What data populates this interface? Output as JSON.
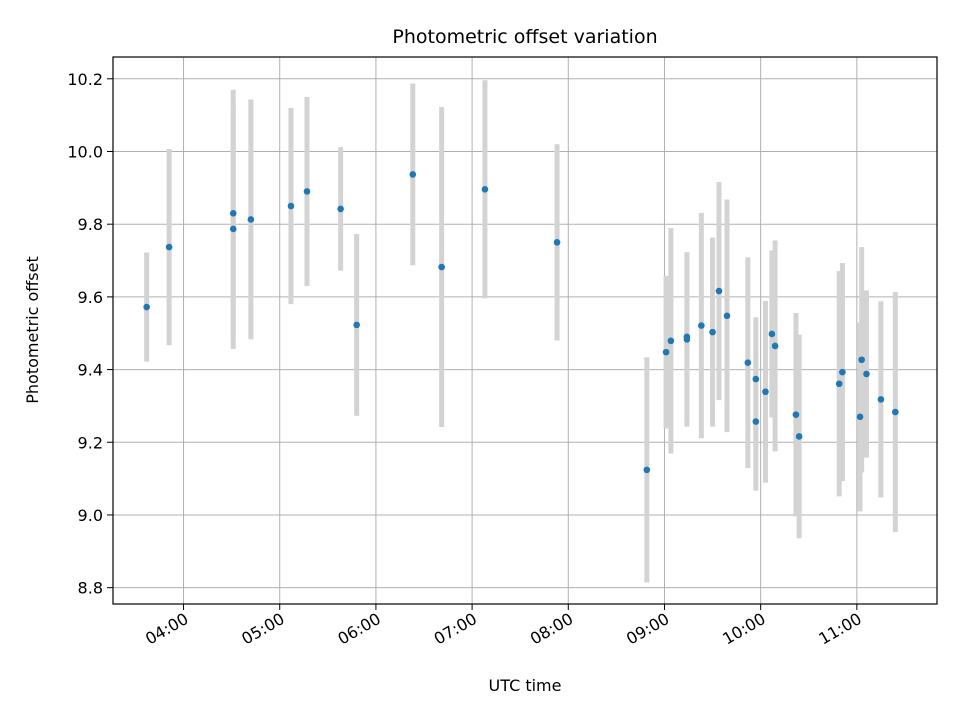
{
  "chart_data": {
    "type": "scatter",
    "title": "Photometric offset variation",
    "xlabel": "UTC time",
    "ylabel": "Photometric offset",
    "x_tick_labels": [
      "04:00",
      "05:00",
      "06:00",
      "07:00",
      "08:00",
      "09:00",
      "10:00",
      "11:00"
    ],
    "y_ticks": [
      8.8,
      9.0,
      9.2,
      9.4,
      9.6,
      9.8,
      10.0,
      10.2
    ],
    "y_tick_labels": [
      "8.8",
      "9.0",
      "9.2",
      "9.4",
      "9.6",
      "9.8",
      "10.0",
      "10.2"
    ],
    "xlim": [
      "03:16",
      "11:50"
    ],
    "ylim": [
      8.755,
      10.26
    ],
    "grid": true,
    "point_color": "#1f77b4",
    "errorbar_color": "#d3d3d3",
    "points": [
      {
        "t": "03:37",
        "y": 9.572,
        "err": 0.15
      },
      {
        "t": "03:51",
        "y": 9.737,
        "err": 0.27
      },
      {
        "t": "04:31",
        "y": 9.83,
        "err": 0.34
      },
      {
        "t": "04:31",
        "y": 9.787,
        "err": 0.33
      },
      {
        "t": "04:42",
        "y": 9.813,
        "err": 0.33
      },
      {
        "t": "05:07",
        "y": 9.85,
        "err": 0.27
      },
      {
        "t": "05:17",
        "y": 9.89,
        "err": 0.26
      },
      {
        "t": "05:38",
        "y": 9.842,
        "err": 0.17
      },
      {
        "t": "05:48",
        "y": 9.523,
        "err": 0.25
      },
      {
        "t": "06:23",
        "y": 9.937,
        "err": 0.25
      },
      {
        "t": "06:41",
        "y": 9.682,
        "err": 0.44
      },
      {
        "t": "07:08",
        "y": 9.896,
        "err": 0.3
      },
      {
        "t": "07:53",
        "y": 9.75,
        "err": 0.27
      },
      {
        "t": "08:49",
        "y": 9.124,
        "err": 0.31
      },
      {
        "t": "09:01",
        "y": 9.448,
        "err": 0.21
      },
      {
        "t": "09:04",
        "y": 9.479,
        "err": 0.31
      },
      {
        "t": "09:14",
        "y": 9.483,
        "err": 0.24
      },
      {
        "t": "09:14",
        "y": 9.49,
        "err": 0.23
      },
      {
        "t": "09:23",
        "y": 9.521,
        "err": 0.31
      },
      {
        "t": "09:30",
        "y": 9.503,
        "err": 0.26
      },
      {
        "t": "09:34",
        "y": 9.616,
        "err": 0.3
      },
      {
        "t": "09:39",
        "y": 9.548,
        "err": 0.32
      },
      {
        "t": "09:52",
        "y": 9.419,
        "err": 0.29
      },
      {
        "t": "09:57",
        "y": 9.257,
        "err": 0.19
      },
      {
        "t": "09:57",
        "y": 9.374,
        "err": 0.17
      },
      {
        "t": "10:03",
        "y": 9.339,
        "err": 0.25
      },
      {
        "t": "10:07",
        "y": 9.498,
        "err": 0.23
      },
      {
        "t": "10:09",
        "y": 9.465,
        "err": 0.29
      },
      {
        "t": "10:22",
        "y": 9.276,
        "err": 0.28
      },
      {
        "t": "10:24",
        "y": 9.216,
        "err": 0.28
      },
      {
        "t": "10:49",
        "y": 9.361,
        "err": 0.31
      },
      {
        "t": "10:51",
        "y": 9.393,
        "err": 0.3
      },
      {
        "t": "11:02",
        "y": 9.27,
        "err": 0.26
      },
      {
        "t": "11:03",
        "y": 9.427,
        "err": 0.31
      },
      {
        "t": "11:06",
        "y": 9.388,
        "err": 0.23
      },
      {
        "t": "11:15",
        "y": 9.318,
        "err": 0.27
      },
      {
        "t": "11:24",
        "y": 9.283,
        "err": 0.33
      }
    ]
  }
}
